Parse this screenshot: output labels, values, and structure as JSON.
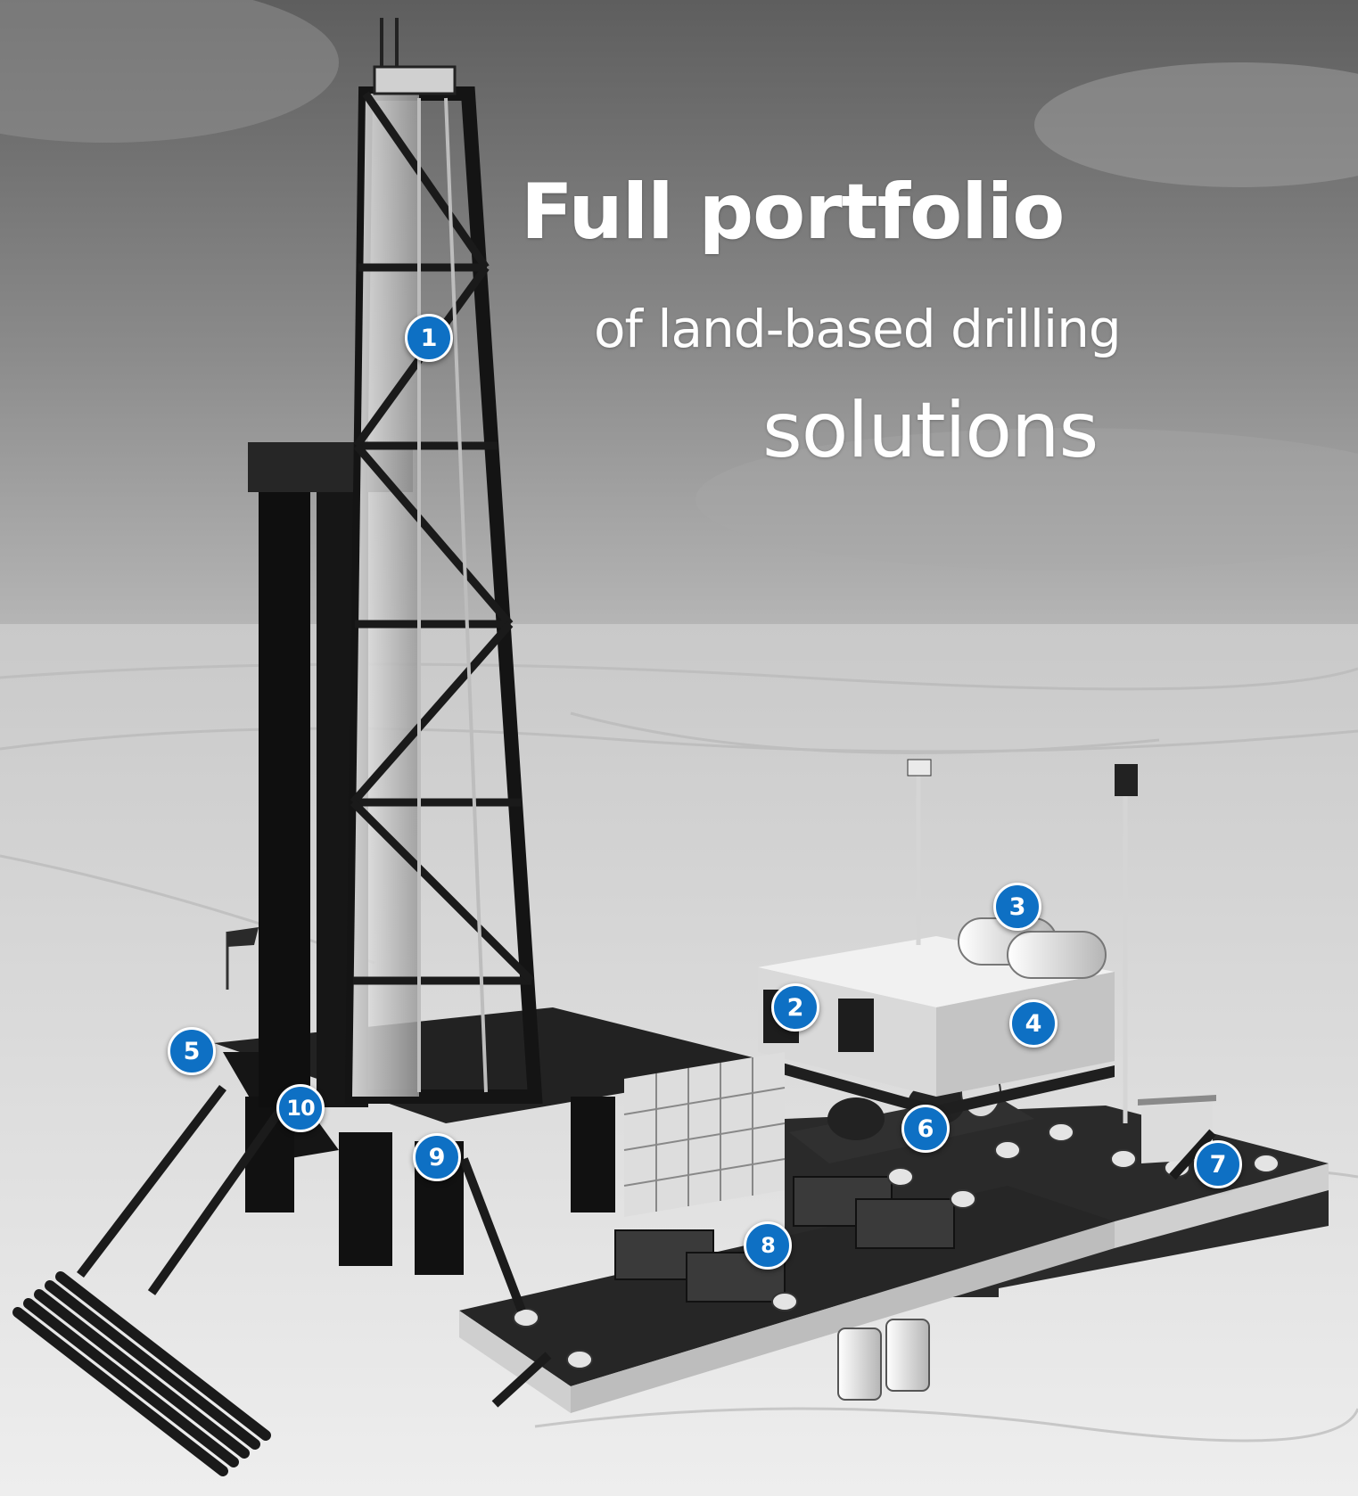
{
  "headline": {
    "line1": "Full portfolio",
    "line2": "of land-based drilling",
    "line3": "solutions"
  },
  "markers": [
    {
      "id": "1",
      "label": "1"
    },
    {
      "id": "2",
      "label": "2"
    },
    {
      "id": "3",
      "label": "3"
    },
    {
      "id": "4",
      "label": "4"
    },
    {
      "id": "5",
      "label": "5"
    },
    {
      "id": "6",
      "label": "6"
    },
    {
      "id": "7",
      "label": "7"
    },
    {
      "id": "8",
      "label": "8"
    },
    {
      "id": "9",
      "label": "9"
    },
    {
      "id": "10",
      "label": "10"
    }
  ],
  "colors": {
    "marker_fill": "#0e70c4",
    "marker_border": "#ffffff",
    "headline_text": "#ffffff"
  }
}
